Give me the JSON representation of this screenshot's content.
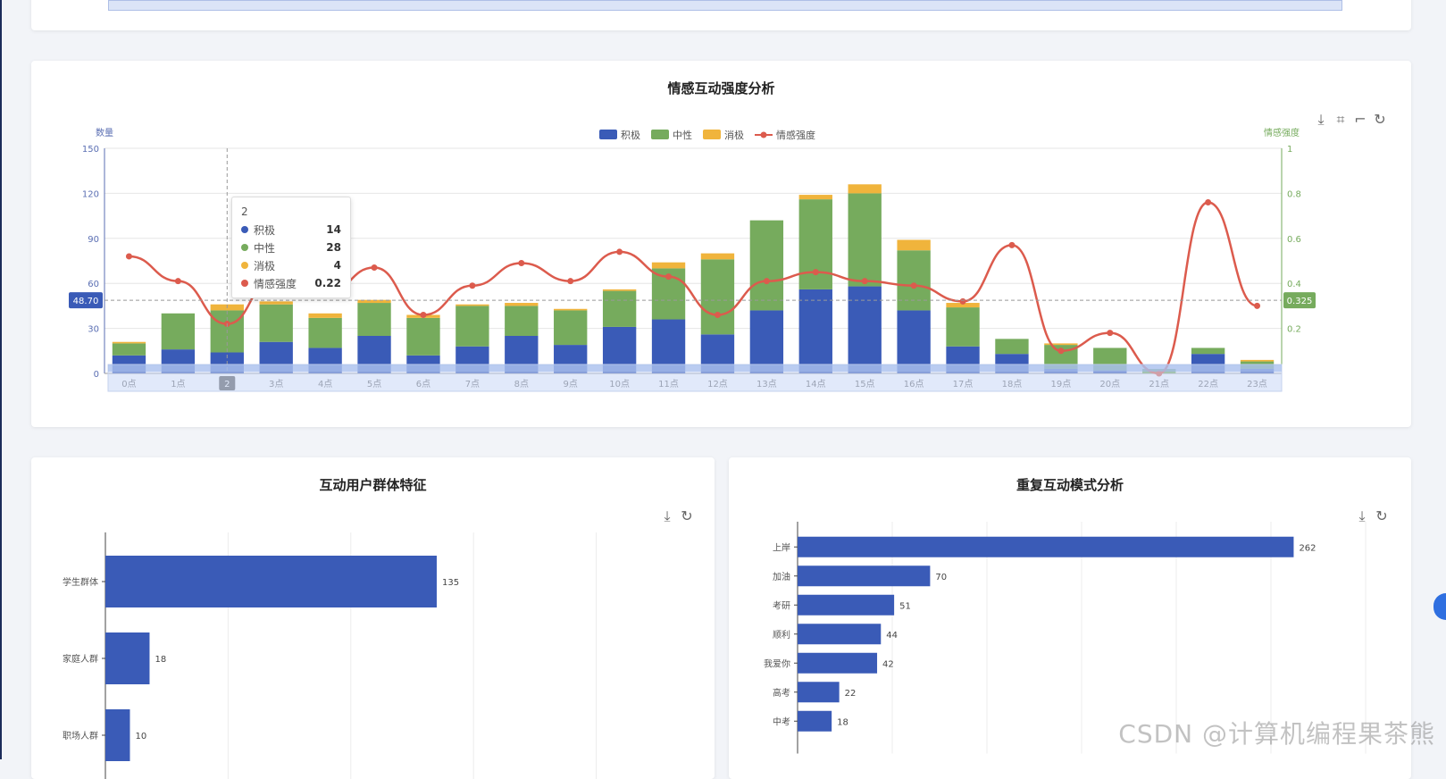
{
  "cards": {
    "emotion": {
      "title": "情感互动强度分析",
      "tools": [
        "download-icon",
        "zoom-icon",
        "zoom-reset-icon",
        "refresh-icon"
      ]
    },
    "groups": {
      "title": "互动用户群体特征",
      "tools": [
        "download-icon",
        "refresh-icon"
      ]
    },
    "patterns": {
      "title": "重复互动模式分析",
      "tools": [
        "download-icon",
        "refresh-icon"
      ]
    }
  },
  "tooltip": {
    "title": "2",
    "rows": [
      {
        "label": "积极",
        "value": "14",
        "color": "#3a5bb7"
      },
      {
        "label": "中性",
        "value": "28",
        "color": "#76ab5d"
      },
      {
        "label": "消极",
        "value": "4",
        "color": "#f0b43c"
      },
      {
        "label": "情感强度",
        "value": "0.22",
        "color": "#dc5b4d"
      }
    ]
  },
  "axis_pointer": {
    "x_label": "2",
    "y_left_label": "48.70",
    "y_right_label": "0.325"
  },
  "watermark": "CSDN @计算机编程果茶熊",
  "chart_data": [
    {
      "type": "bar",
      "title": "情感互动强度分析",
      "categories": [
        "0点",
        "1点",
        "2",
        "3点",
        "4点",
        "5点",
        "6点",
        "7点",
        "8点",
        "9点",
        "10点",
        "11点",
        "12点",
        "13点",
        "14点",
        "15点",
        "16点",
        "17点",
        "18点",
        "19点",
        "20点",
        "21点",
        "22点",
        "23点"
      ],
      "stacked": true,
      "series": [
        {
          "name": "积极",
          "type": "bar",
          "color": "#3a5bb7",
          "values": [
            12,
            16,
            14,
            21,
            17,
            25,
            12,
            18,
            25,
            19,
            31,
            36,
            26,
            42,
            56,
            58,
            42,
            18,
            13,
            3,
            2,
            0,
            13,
            3
          ]
        },
        {
          "name": "中性",
          "type": "bar",
          "color": "#76ab5d",
          "values": [
            8,
            24,
            28,
            25,
            20,
            22,
            25,
            27,
            20,
            23,
            24,
            34,
            50,
            60,
            60,
            62,
            40,
            26,
            10,
            16,
            15,
            3,
            4,
            5
          ]
        },
        {
          "name": "消极",
          "type": "bar",
          "color": "#f0b43c",
          "values": [
            1,
            0,
            4,
            2,
            3,
            2,
            2,
            1,
            2,
            1,
            1,
            4,
            4,
            0,
            3,
            6,
            7,
            3,
            0,
            1,
            0,
            0,
            0,
            1
          ]
        },
        {
          "name": "情感强度",
          "type": "line",
          "axis": "right",
          "color": "#dc5b4d",
          "values": [
            0.52,
            0.41,
            0.22,
            0.44,
            0.35,
            0.47,
            0.26,
            0.39,
            0.49,
            0.41,
            0.54,
            0.43,
            0.26,
            0.41,
            0.45,
            0.41,
            0.39,
            0.32,
            0.57,
            0.1,
            0.18,
            0.0,
            0.76,
            0.3
          ]
        }
      ],
      "y_left": {
        "label": "数量",
        "min": 0,
        "max": 150,
        "ticks": [
          0,
          30,
          60,
          90,
          120,
          150
        ]
      },
      "y_right": {
        "label": "情感强度",
        "min": 0,
        "max": 1,
        "ticks": [
          0.2,
          0.4,
          0.6,
          0.8,
          1
        ]
      },
      "legend": {
        "position": "top-center",
        "items": [
          "积极",
          "中性",
          "消极",
          "情感强度"
        ]
      },
      "grid": true
    },
    {
      "type": "bar",
      "orientation": "horizontal",
      "title": "互动用户群体特征",
      "categories": [
        "学生群体",
        "家庭人群",
        "职场人群"
      ],
      "values": [
        135,
        18,
        10
      ],
      "xlim": [
        0,
        250
      ]
    },
    {
      "type": "bar",
      "orientation": "horizontal",
      "title": "重复互动模式分析",
      "categories": [
        "上岸",
        "加油",
        "考研",
        "顺利",
        "我爱你",
        "高考",
        "中考"
      ],
      "values": [
        262,
        70,
        51,
        44,
        42,
        22,
        18
      ],
      "xlim": [
        0,
        300
      ]
    }
  ]
}
